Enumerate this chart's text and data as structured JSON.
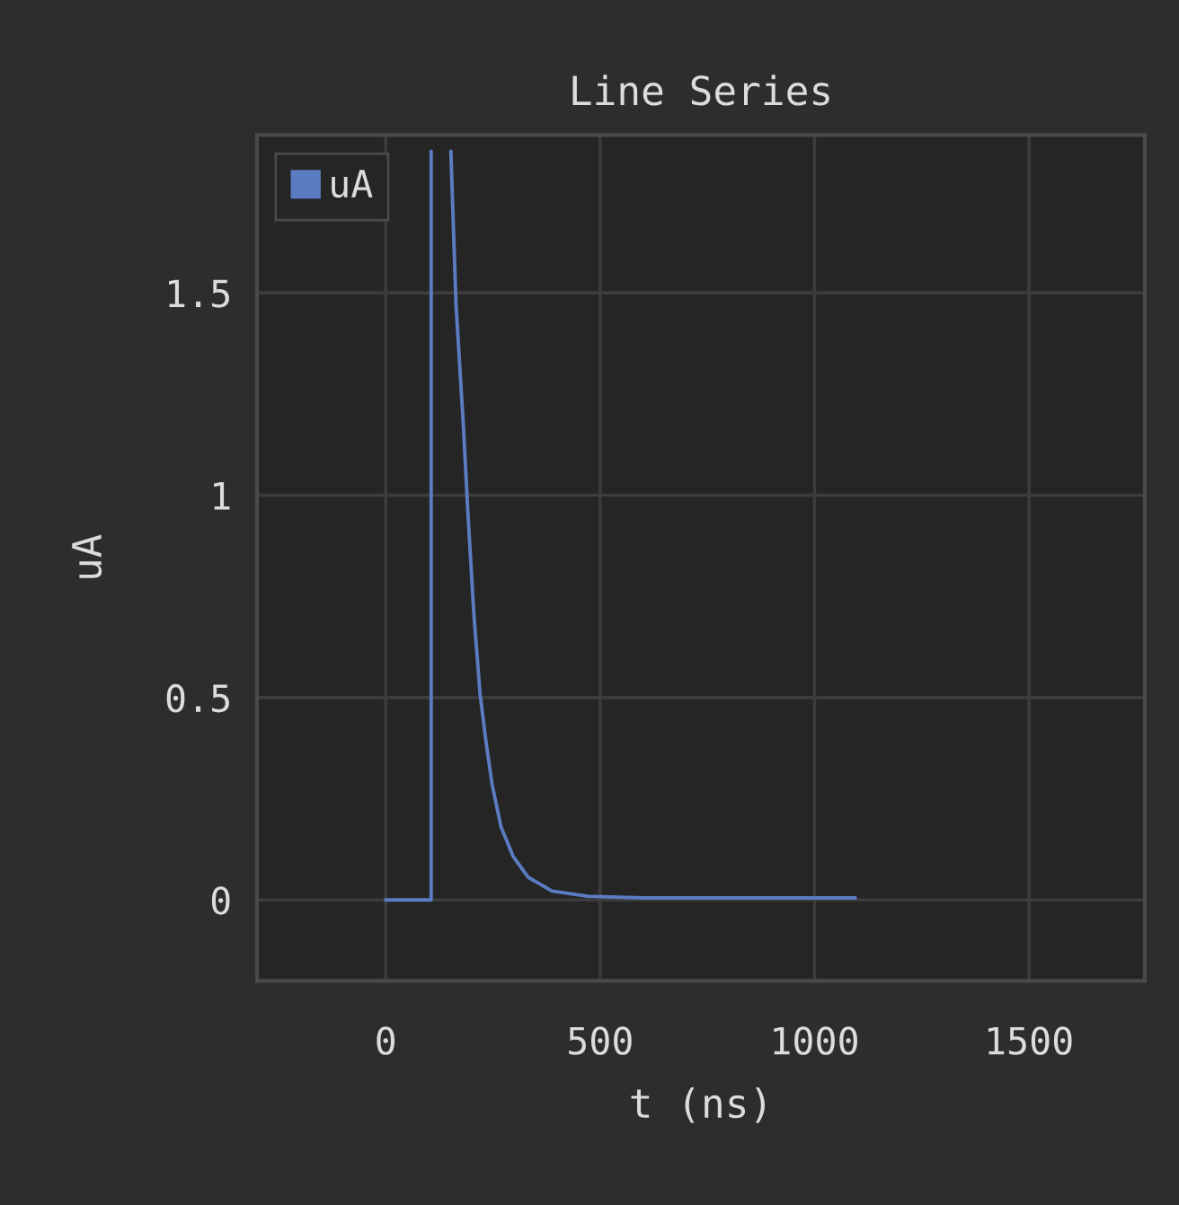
{
  "chart_data": {
    "type": "line",
    "title": "Line Series",
    "xlabel": "t (ns)",
    "ylabel": "uA",
    "xlim": [
      -300,
      1770
    ],
    "xticks": [
      0,
      500,
      1000,
      1500
    ],
    "ylim": [
      -0.2,
      1.89
    ],
    "yticks": [
      0,
      0.5,
      1,
      1.5
    ],
    "grid": true,
    "legend": "top left",
    "marker": "none",
    "line_style": "solid",
    "series": [
      {
        "name": "uA",
        "color": "#5b7cc2",
        "x": [
          0,
          106,
          106,
          128,
          152,
          164,
          181,
          192,
          206,
          220,
          234,
          248,
          269,
          297,
          332,
          388,
          471,
          600,
          800,
          1000,
          1095
        ],
        "values": [
          0,
          0,
          1.85,
          null,
          1.85,
          1.47,
          1.175,
          0.95,
          0.7,
          0.51,
          0.39,
          0.286,
          0.18,
          0.108,
          0.056,
          0.022,
          0.009,
          0.005,
          0.005,
          0.005,
          0.005
        ]
      }
    ]
  }
}
